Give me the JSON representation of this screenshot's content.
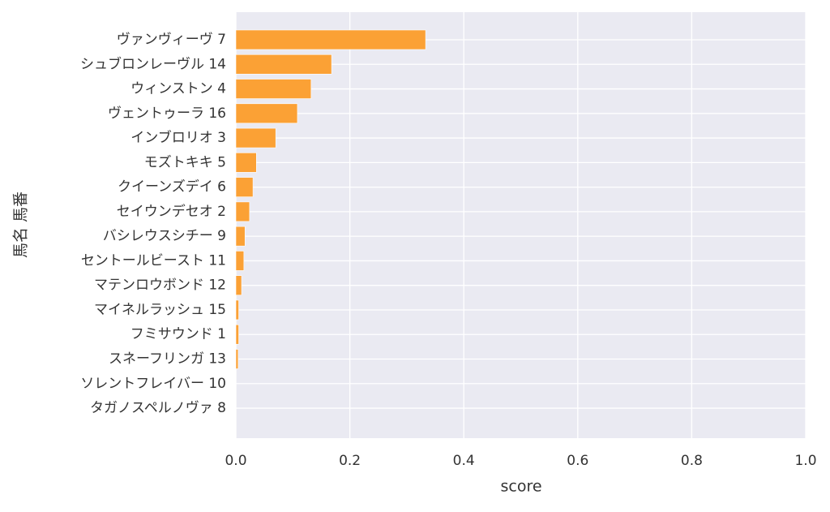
{
  "chart_data": {
    "type": "barh",
    "xlabel": "score",
    "ylabel": "馬名 馬番",
    "categories": [
      "ヴァンヴィーヴ 7",
      "シュブロンレーヴル 14",
      "ウィンストン 4",
      "ヴェントゥーラ 16",
      "インブロリオ 3",
      "モズトキキ 5",
      "クイーンズデイ 6",
      "セイウンデセオ 2",
      "バシレウスシチー 9",
      "セントールビースト 11",
      "マテンロウボンド 12",
      "マイネルラッシュ 15",
      "フミサウンド 1",
      "スネーフリンガ 13",
      "ソレントフレイバー 10",
      "タガノスペルノヴァ 8"
    ],
    "values": [
      0.333,
      0.168,
      0.132,
      0.108,
      0.07,
      0.036,
      0.03,
      0.024,
      0.016,
      0.014,
      0.01,
      0.005,
      0.005,
      0.004,
      0,
      0
    ],
    "color": "#fba135",
    "xlim": [
      0,
      1
    ],
    "xticks": [
      {
        "value": 0,
        "label": "0.0"
      },
      0.2,
      0.4,
      0.6,
      0.8,
      {
        "value": 1,
        "label": "1.0"
      }
    ],
    "grid": true
  }
}
